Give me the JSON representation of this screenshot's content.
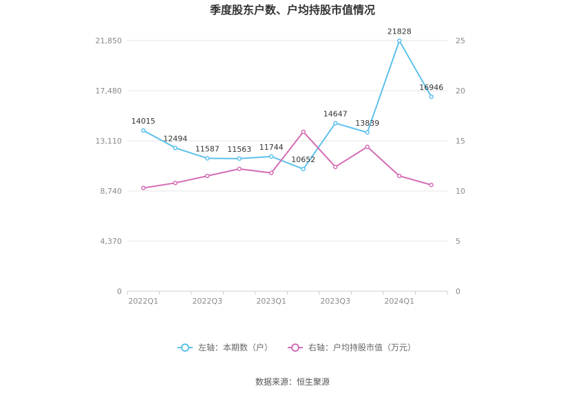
{
  "title": "季度股东户数、户均持股市值情况",
  "source": "数据来源：恒生聚源",
  "chart_data": {
    "type": "line",
    "title": "季度股东户数、户均持股市值情况",
    "x": [
      "2022Q1",
      "2022Q2",
      "2022Q3",
      "2022Q4",
      "2023Q1",
      "2023Q2",
      "2023Q3",
      "2023Q4",
      "2024Q1",
      "2024Q2"
    ],
    "x_tick_labels": [
      "2022Q1",
      "2022Q3",
      "2023Q1",
      "2023Q3",
      "2024Q1"
    ],
    "left_axis": {
      "ticks": [
        "0",
        "4,370",
        "8,740",
        "13,110",
        "17,480",
        "21,850"
      ],
      "ylim": [
        0,
        21850
      ]
    },
    "right_axis": {
      "ticks": [
        "0",
        "5",
        "10",
        "15",
        "20",
        "25"
      ],
      "ylim": [
        0,
        25
      ]
    },
    "grid": true,
    "legend_position": "bottom",
    "series": [
      {
        "name": "左轴：本期数（户）",
        "axis": "left",
        "color": "#5bc0eb",
        "values": [
          14015,
          12494,
          11587,
          11563,
          11744,
          10652,
          14647,
          13839,
          21828,
          16946
        ],
        "labels": [
          "14015",
          "12494",
          "11587",
          "11563",
          "11744",
          "10652",
          "14647",
          "13839",
          "21828",
          "16946"
        ]
      },
      {
        "name": "右轴：户均持股市值（万元）",
        "axis": "right",
        "color": "#d36bb4",
        "values": [
          10.3,
          10.8,
          11.5,
          12.2,
          11.8,
          15.9,
          12.4,
          14.4,
          11.5,
          10.6
        ]
      }
    ]
  }
}
